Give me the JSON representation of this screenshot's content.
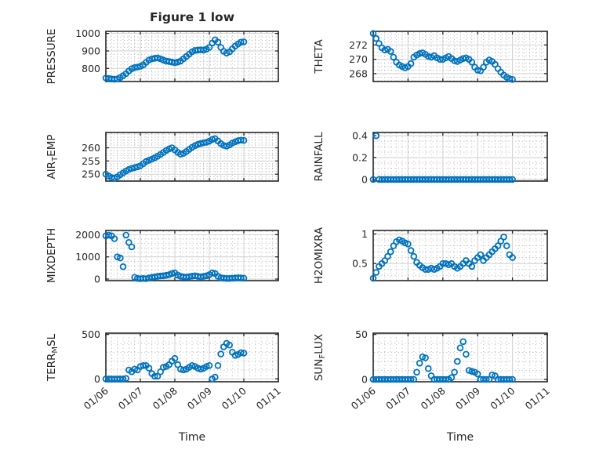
{
  "figure": {
    "title": "Figure 1 low",
    "marker_color": "#0072BD",
    "axis_color": "#262626",
    "major_grid_color": "#d4d4d4",
    "minor_grid_color": "#a8a8a8"
  },
  "chart_data": {
    "type": "scatter",
    "layout": "4x2-grid",
    "grid": "major-solid-minor-dotted",
    "x": {
      "label": "Time",
      "tick_labels": [
        "01/06",
        "01/07",
        "01/08",
        "01/09",
        "01/10",
        "01/11"
      ],
      "lim_days": [
        0,
        5
      ],
      "sample_times_days": [
        0,
        0.083,
        0.167,
        0.25,
        0.333,
        0.417,
        0.5,
        0.583,
        0.667,
        0.75,
        0.833,
        0.917,
        1,
        1.083,
        1.167,
        1.25,
        1.333,
        1.417,
        1.5,
        1.583,
        1.667,
        1.75,
        1.833,
        1.917,
        2,
        2.083,
        2.167,
        2.25,
        2.333,
        2.417,
        2.5,
        2.583,
        2.667,
        2.75,
        2.833,
        2.917,
        3,
        3.083,
        3.167,
        3.25,
        3.333,
        3.417,
        3.5,
        3.583,
        3.667,
        3.75,
        3.833,
        3.917,
        4
      ]
    },
    "subplots": [
      {
        "name": "PRESSURE",
        "row": 0,
        "col": 0,
        "ylabel": {
          "pre": "PRESSURE",
          "sub": "",
          "post": ""
        },
        "yticks": [
          800,
          900,
          1000
        ],
        "ylim": [
          725,
          1012
        ],
        "yminor": 20,
        "values": [
          745,
          742,
          740,
          738,
          740,
          748,
          758,
          770,
          785,
          798,
          805,
          808,
          812,
          820,
          835,
          848,
          855,
          858,
          860,
          855,
          848,
          842,
          840,
          836,
          833,
          836,
          842,
          855,
          868,
          882,
          895,
          903,
          905,
          906,
          905,
          910,
          920,
          945,
          963,
          950,
          920,
          898,
          888,
          895,
          912,
          928,
          940,
          950,
          952
        ]
      },
      {
        "name": "THETA",
        "row": 0,
        "col": 1,
        "ylabel": {
          "pre": "THETA",
          "sub": "",
          "post": ""
        },
        "yticks": [
          268,
          270,
          272
        ],
        "ylim": [
          266.9,
          273.9
        ],
        "yminor": 0.5,
        "values": [
          273.6,
          272.9,
          272.2,
          271.6,
          271.3,
          271.4,
          271.1,
          270.3,
          269.6,
          269.2,
          269.0,
          268.8,
          269.0,
          269.4,
          270.3,
          270.6,
          270.8,
          270.9,
          270.7,
          270.4,
          270.3,
          270.5,
          270.2,
          270.0,
          270.0,
          270.2,
          270.4,
          270.1,
          269.8,
          269.7,
          269.9,
          270.1,
          270.2,
          270.0,
          269.6,
          268.9,
          268.5,
          268.4,
          268.9,
          269.6,
          269.9,
          269.7,
          269.3,
          268.7,
          268.2,
          267.8,
          267.5,
          267.3,
          267.2
        ]
      },
      {
        "name": "AIR_TEMP",
        "row": 1,
        "col": 0,
        "ylabel": {
          "pre": "AIR",
          "sub": "T",
          "post": "EMP"
        },
        "yticks": [
          250,
          255,
          260
        ],
        "ylim": [
          247.4,
          265.8
        ],
        "yminor": 1,
        "values": [
          250.0,
          249.3,
          248.7,
          248.5,
          249.0,
          249.8,
          250.5,
          251.2,
          251.8,
          252.2,
          252.5,
          252.8,
          253.2,
          254.0,
          254.8,
          255.3,
          255.7,
          256.2,
          256.8,
          257.5,
          258.2,
          259.0,
          259.6,
          260.0,
          259.2,
          258.3,
          257.6,
          257.9,
          258.6,
          259.4,
          260.2,
          260.8,
          261.3,
          261.6,
          261.9,
          262.1,
          262.5,
          263.2,
          263.5,
          262.6,
          261.6,
          260.9,
          260.6,
          261.1,
          261.8,
          262.3,
          262.7,
          262.9,
          262.8
        ]
      },
      {
        "name": "RAINFALL",
        "row": 1,
        "col": 1,
        "ylabel": {
          "pre": "RAINFALL",
          "sub": "",
          "post": ""
        },
        "yticks": [
          0,
          0.2,
          0.4
        ],
        "ylim": [
          -0.015,
          0.43
        ],
        "yminor": 0.05,
        "values": [
          0,
          0.4,
          0,
          0,
          0,
          0,
          0,
          0,
          0,
          0,
          0,
          0,
          0,
          0,
          0,
          0,
          0,
          0,
          0,
          0,
          0,
          0,
          0,
          0,
          0,
          0,
          0,
          0,
          0,
          0,
          0,
          0,
          0,
          0,
          0,
          0,
          0,
          0,
          0,
          0,
          0,
          0,
          0,
          0,
          0,
          0,
          0,
          0,
          0
        ]
      },
      {
        "name": "MIXDEPTH",
        "row": 2,
        "col": 0,
        "ylabel": {
          "pre": "MIXDEPTH",
          "sub": "",
          "post": ""
        },
        "yticks": [
          0,
          1000,
          2000
        ],
        "ylim": [
          -70,
          2190
        ],
        "yminor": 200,
        "values": [
          1950,
          1980,
          1950,
          1820,
          1000,
          950,
          560,
          1980,
          1650,
          1450,
          80,
          30,
          20,
          30,
          20,
          50,
          80,
          100,
          120,
          140,
          150,
          170,
          200,
          250,
          280,
          180,
          120,
          100,
          90,
          110,
          130,
          150,
          120,
          100,
          120,
          150,
          200,
          280,
          250,
          120,
          60,
          40,
          30,
          30,
          40,
          50,
          60,
          50,
          40
        ]
      },
      {
        "name": "H2OMIXRA",
        "row": 2,
        "col": 1,
        "ylabel": {
          "pre": "H2OMIXRA",
          "sub": "",
          "post": ""
        },
        "yticks": [
          0.5,
          1
        ],
        "ylim": [
          0.21,
          1.06
        ],
        "yminor": 0.1,
        "values": [
          0.25,
          0.35,
          0.45,
          0.5,
          0.55,
          0.62,
          0.7,
          0.8,
          0.87,
          0.9,
          0.88,
          0.85,
          0.83,
          0.72,
          0.62,
          0.52,
          0.47,
          0.43,
          0.4,
          0.4,
          0.42,
          0.4,
          0.42,
          0.45,
          0.5,
          0.5,
          0.48,
          0.5,
          0.45,
          0.42,
          0.45,
          0.5,
          0.55,
          0.5,
          0.45,
          0.55,
          0.6,
          0.65,
          0.55,
          0.6,
          0.65,
          0.7,
          0.75,
          0.8,
          0.88,
          0.95,
          0.8,
          0.65,
          0.6
        ]
      },
      {
        "name": "TERR_MSL",
        "row": 3,
        "col": 0,
        "ylabel": {
          "pre": "TERR",
          "sub": "M",
          "post": "SL"
        },
        "yticks": [
          0,
          500
        ],
        "ylim": [
          -32,
          514
        ],
        "yminor": 100,
        "values": [
          0,
          0,
          0,
          0,
          0,
          0,
          0,
          5,
          100,
          80,
          110,
          100,
          140,
          150,
          150,
          120,
          60,
          30,
          30,
          80,
          130,
          140,
          160,
          200,
          230,
          160,
          110,
          100,
          110,
          130,
          150,
          140,
          120,
          110,
          120,
          140,
          150,
          0,
          20,
          150,
          280,
          360,
          400,
          380,
          300,
          265,
          275,
          295,
          290
        ]
      },
      {
        "name": "SUN_FLUX",
        "row": 3,
        "col": 1,
        "ylabel": {
          "pre": "SUN",
          "sub": "F",
          "post": "LUX"
        },
        "yticks": [
          0,
          50
        ],
        "ylim": [
          -2.6,
          51.4
        ],
        "yminor": 10,
        "values": [
          0,
          0,
          0,
          0,
          0,
          0,
          0,
          0,
          0,
          0,
          0,
          0,
          0,
          0,
          0,
          8,
          18,
          25,
          24,
          12,
          4,
          0,
          0,
          0,
          0,
          0,
          0,
          2,
          8,
          20,
          35,
          42,
          28,
          10,
          9,
          8,
          6,
          0,
          0,
          0,
          0,
          5,
          4,
          0,
          0,
          0,
          0,
          0,
          0
        ]
      }
    ]
  }
}
